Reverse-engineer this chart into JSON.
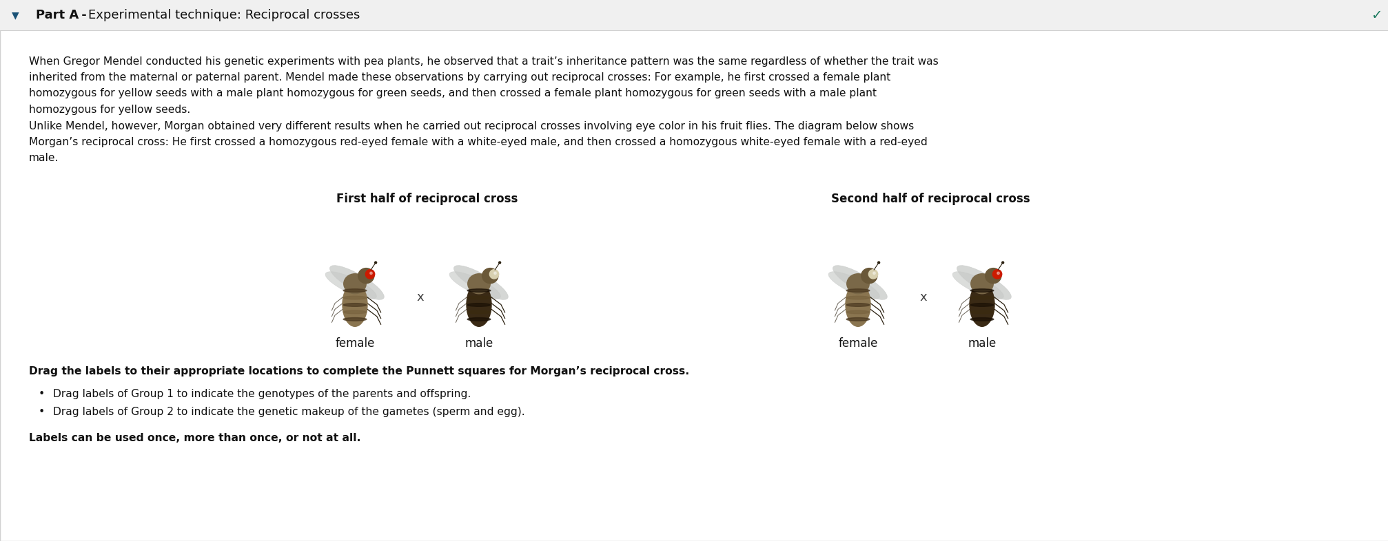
{
  "title_bold": "Part A",
  "title_dash": " - ",
  "title_rest": "Experimental technique: Reciprocal crosses",
  "background_color": "#ffffff",
  "border_color": "#d0d0d0",
  "header_bg": "#f0f0f0",
  "triangle_color": "#1a5276",
  "check_color": "#1a7a5e",
  "paragraph1_line1": "When Gregor Mendel conducted his genetic experiments with pea plants, he observed that a trait’s inheritance pattern was the same regardless of whether the trait was",
  "paragraph1_line2": "inherited from the maternal or paternal parent. Mendel made these observations by carrying out reciprocal crosses: For example, he first crossed a female plant",
  "paragraph1_line3": "homozygous for yellow seeds with a male plant homozygous for green seeds, and then crossed a female plant homozygous for green seeds with a male plant",
  "paragraph1_line4": "homozygous for yellow seeds.",
  "paragraph2_line1": "Unlike Mendel, however, Morgan obtained very different results when he carried out reciprocal crosses involving eye color in his fruit flies. The diagram below shows",
  "paragraph2_line2": "Morgan’s reciprocal cross: He first crossed a homozygous red-eyed female with a white-eyed male, and then crossed a homozygous white-eyed female with a red-eyed",
  "paragraph2_line3": "male.",
  "section1_title": "First half of reciprocal cross",
  "section2_title": "Second half of reciprocal cross",
  "label_female": "female",
  "label_male": "male",
  "instruction_bold": "Drag the labels to their appropriate locations to complete the Punnett squares for Morgan’s reciprocal cross.",
  "bullet1": "Drag labels of Group 1 to indicate the genotypes of the parents and offspring.",
  "bullet2": "Drag labels of Group 2 to indicate the genetic makeup of the gametes (sperm and egg).",
  "footer_bold": "Labels can be used once, more than once, or not at all.",
  "fig_width": 20.15,
  "fig_height": 7.86,
  "dpi": 100,
  "body_fontsize": 11.2,
  "header_fontsize": 13,
  "section_title_fontsize": 12,
  "label_fontsize": 12,
  "instr_fontsize": 11.2,
  "bullet_fontsize": 11.2
}
